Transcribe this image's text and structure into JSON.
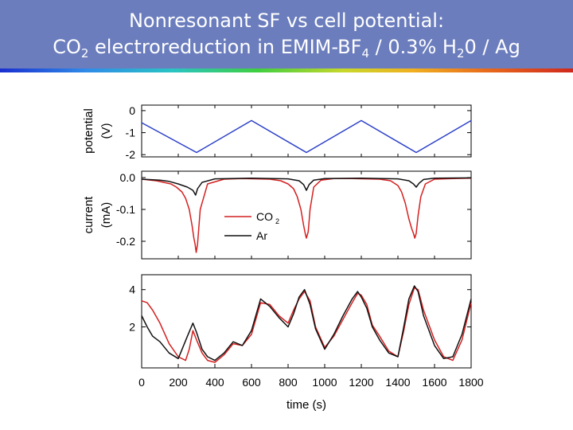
{
  "slide": {
    "title_line1": "Nonresonant SF vs cell potential:",
    "title_line2": {
      "p1": "CO",
      "s1": "2",
      "p2": " electroreduction in EMIM-BF",
      "s2": "4",
      "p3": " / 0.3% H",
      "s3": "2",
      "p4": "0 / Ag"
    }
  },
  "chart_data": [
    {
      "type": "line",
      "panel": "top",
      "ylabel_line1": "potential",
      "ylabel_line2": "(V)",
      "ylim": [
        -2.1,
        0.25
      ],
      "yticks": [
        0,
        -1,
        -2
      ],
      "yticklabels": [
        "0",
        "-1",
        "-2"
      ],
      "xlim": [
        0,
        1800
      ],
      "series": [
        {
          "name": "",
          "color": "#2a3fc8",
          "x": [
            0,
            300,
            600,
            900,
            1200,
            1500,
            1800
          ],
          "y": [
            -0.55,
            -1.9,
            -0.45,
            -1.9,
            -0.45,
            -1.9,
            -0.45
          ]
        }
      ]
    },
    {
      "type": "line",
      "panel": "middle",
      "ylabel_line1": "current",
      "ylabel_line2": "(mA)",
      "ylim": [
        -0.255,
        0.02
      ],
      "yticks": [
        0.0,
        -0.1,
        -0.2
      ],
      "yticklabels": [
        "0.0",
        "-0.1",
        "-0.2"
      ],
      "xlim": [
        0,
        1800
      ],
      "legend": {
        "position": "lower-left",
        "entries": [
          "CO",
          "Ar"
        ],
        "co2_sub": "2"
      },
      "series": [
        {
          "name": "CO2",
          "color": "#d42020",
          "x": [
            0,
            80,
            120,
            160,
            190,
            220,
            240,
            260,
            275,
            285,
            292,
            298,
            305,
            320,
            360,
            450,
            550,
            700,
            760,
            800,
            830,
            850,
            870,
            885,
            895,
            900,
            910,
            920,
            940,
            980,
            1050,
            1150,
            1300,
            1360,
            1400,
            1420,
            1440,
            1460,
            1475,
            1485,
            1492,
            1500,
            1510,
            1525,
            1550,
            1600,
            1700,
            1800
          ],
          "y": [
            -0.005,
            -0.01,
            -0.015,
            -0.02,
            -0.03,
            -0.045,
            -0.065,
            -0.1,
            -0.15,
            -0.19,
            -0.21,
            -0.235,
            -0.21,
            -0.1,
            -0.02,
            -0.005,
            -0.003,
            -0.005,
            -0.01,
            -0.02,
            -0.035,
            -0.06,
            -0.1,
            -0.15,
            -0.18,
            -0.19,
            -0.17,
            -0.1,
            -0.03,
            -0.008,
            -0.003,
            -0.003,
            -0.005,
            -0.01,
            -0.025,
            -0.045,
            -0.08,
            -0.13,
            -0.16,
            -0.175,
            -0.19,
            -0.175,
            -0.12,
            -0.06,
            -0.02,
            -0.005,
            -0.003,
            -0.002
          ]
        },
        {
          "name": "Ar",
          "color": "#111111",
          "x": [
            0,
            100,
            150,
            200,
            250,
            280,
            295,
            305,
            330,
            400,
            600,
            800,
            860,
            885,
            900,
            915,
            940,
            1000,
            1200,
            1400,
            1460,
            1485,
            1500,
            1515,
            1540,
            1600,
            1800
          ],
          "y": [
            -0.005,
            -0.008,
            -0.012,
            -0.02,
            -0.03,
            -0.04,
            -0.055,
            -0.035,
            -0.015,
            -0.004,
            -0.002,
            -0.004,
            -0.01,
            -0.022,
            -0.04,
            -0.022,
            -0.008,
            -0.003,
            -0.002,
            -0.004,
            -0.01,
            -0.02,
            -0.03,
            -0.018,
            -0.006,
            -0.002,
            -0.001
          ]
        }
      ]
    },
    {
      "type": "line",
      "panel": "bottom",
      "ylabel": "",
      "ylim": [
        -0.2,
        4.8
      ],
      "yticks": [
        4,
        2
      ],
      "yticklabels": [
        "4",
        "2"
      ],
      "xlim": [
        0,
        1800
      ],
      "xticks": [
        0,
        200,
        400,
        600,
        800,
        1000,
        1200,
        1400,
        1600,
        1800
      ],
      "xticklabels": [
        "0",
        "200",
        "400",
        "600",
        "800",
        "1000",
        "1200",
        "1400",
        "1600",
        "1800"
      ],
      "xlabel": "time (s)",
      "series": [
        {
          "name": "CO2",
          "color": "#d42020",
          "x": [
            0,
            30,
            60,
            100,
            150,
            200,
            240,
            260,
            280,
            300,
            330,
            360,
            400,
            450,
            500,
            550,
            600,
            650,
            700,
            750,
            800,
            830,
            860,
            890,
            920,
            950,
            1000,
            1050,
            1100,
            1150,
            1180,
            1200,
            1230,
            1260,
            1300,
            1350,
            1400,
            1430,
            1460,
            1490,
            1510,
            1540,
            1600,
            1650,
            1700,
            1750,
            1800
          ],
          "y": [
            3.4,
            3.3,
            2.9,
            2.2,
            1.1,
            0.4,
            0.2,
            0.8,
            1.8,
            1.3,
            0.6,
            0.2,
            0.1,
            0.5,
            1.1,
            1.0,
            1.6,
            3.3,
            3.2,
            2.6,
            2.2,
            2.9,
            3.5,
            3.9,
            3.4,
            2.0,
            0.9,
            1.5,
            2.4,
            3.3,
            3.8,
            3.7,
            3.2,
            2.1,
            1.5,
            0.7,
            0.4,
            1.7,
            3.2,
            4.1,
            4.0,
            2.9,
            1.3,
            0.4,
            0.2,
            1.3,
            3.3
          ]
        },
        {
          "name": "Ar",
          "color": "#111111",
          "x": [
            0,
            30,
            60,
            100,
            150,
            200,
            250,
            280,
            300,
            330,
            360,
            400,
            450,
            500,
            550,
            600,
            650,
            700,
            750,
            800,
            830,
            860,
            890,
            920,
            950,
            1000,
            1050,
            1100,
            1150,
            1180,
            1200,
            1230,
            1260,
            1300,
            1350,
            1400,
            1430,
            1460,
            1490,
            1510,
            1540,
            1600,
            1650,
            1700,
            1750,
            1800
          ],
          "y": [
            2.6,
            2.0,
            1.5,
            1.2,
            0.6,
            0.3,
            1.5,
            2.2,
            1.7,
            0.8,
            0.4,
            0.2,
            0.6,
            1.2,
            1.0,
            1.8,
            3.5,
            3.1,
            2.5,
            2.0,
            2.7,
            3.6,
            4.0,
            3.2,
            1.9,
            0.8,
            1.6,
            2.6,
            3.5,
            3.9,
            3.6,
            3.0,
            2.0,
            1.3,
            0.6,
            0.4,
            1.9,
            3.5,
            4.2,
            3.9,
            2.6,
            1.0,
            0.3,
            0.4,
            1.6,
            3.5
          ]
        }
      ]
    }
  ]
}
